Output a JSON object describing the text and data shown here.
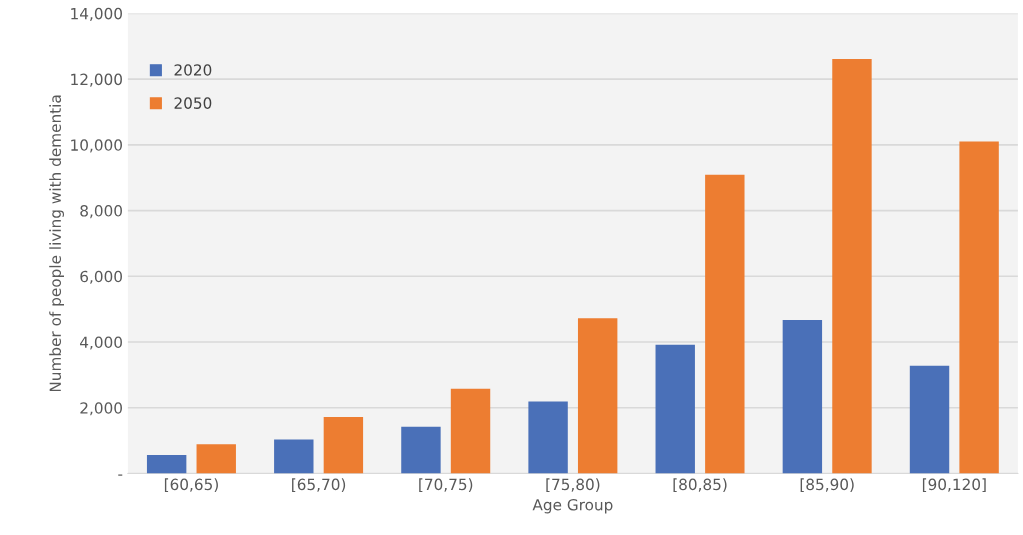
{
  "chart_data": {
    "type": "bar",
    "xlabel": "Age Group",
    "ylabel": "Number of people living with dementia",
    "categories": [
      "[60,65)",
      "[65,70)",
      "[70,75)",
      "[75,80)",
      "[80,85)",
      "[85,90)",
      "[90,120]"
    ],
    "series": [
      {
        "name": "2020",
        "color": "#4a70b8",
        "values": [
          560,
          1030,
          1420,
          2190,
          3920,
          4670,
          3280
        ]
      },
      {
        "name": "2050",
        "color": "#ed7d31",
        "values": [
          890,
          1720,
          2580,
          4720,
          9090,
          12610,
          10100
        ]
      }
    ],
    "ylim": [
      0,
      14000
    ],
    "yticks": [
      {
        "value": 0,
        "label": "-"
      },
      {
        "value": 2000,
        "label": "2,000"
      },
      {
        "value": 4000,
        "label": "4,000"
      },
      {
        "value": 6000,
        "label": "6,000"
      },
      {
        "value": 8000,
        "label": "8,000"
      },
      {
        "value": 10000,
        "label": "10,000"
      },
      {
        "value": 12000,
        "label": "12,000"
      },
      {
        "value": 14000,
        "label": "14,000"
      }
    ],
    "grid": "y",
    "legend": "top left"
  }
}
